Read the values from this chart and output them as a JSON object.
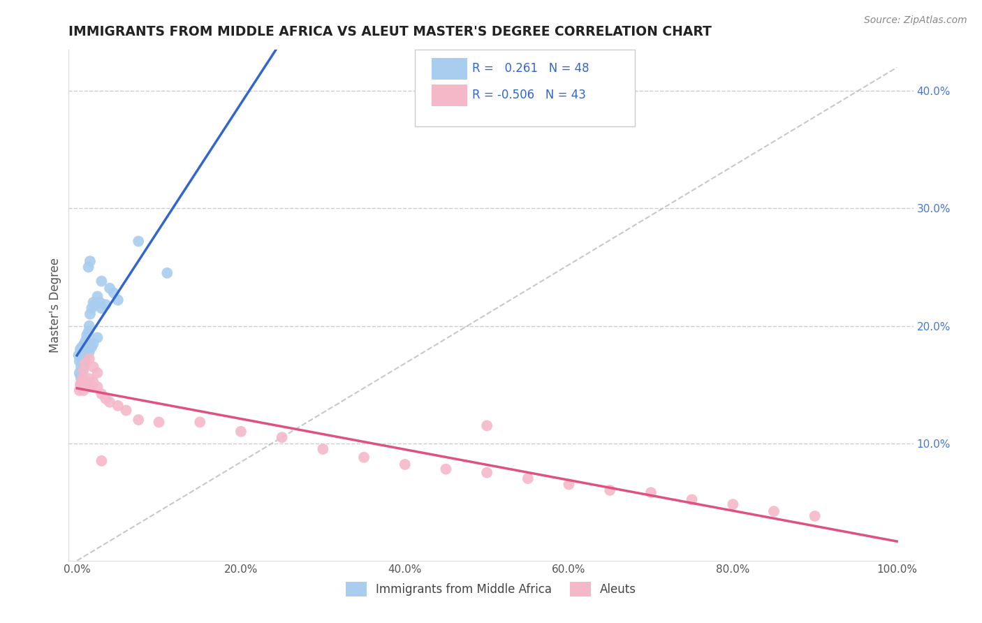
{
  "title": "IMMIGRANTS FROM MIDDLE AFRICA VS ALEUT MASTER'S DEGREE CORRELATION CHART",
  "source": "Source: ZipAtlas.com",
  "ylabel": "Master's Degree",
  "legend_label_blue": "Immigrants from Middle Africa",
  "legend_label_pink": "Aleuts",
  "r_blue": 0.261,
  "n_blue": 48,
  "r_pink": -0.506,
  "n_pink": 43,
  "color_blue": "#A8CDEE",
  "color_blue_line": "#3366CC",
  "color_pink": "#F5B8C8",
  "color_pink_line": "#E05080",
  "color_dashed": "#BBBBBB",
  "background": "#FFFFFF",
  "grid_color": "#CCCCCC",
  "blue_scatter_x": [
    0.002,
    0.003,
    0.004,
    0.005,
    0.005,
    0.006,
    0.006,
    0.007,
    0.007,
    0.008,
    0.008,
    0.009,
    0.01,
    0.01,
    0.011,
    0.012,
    0.013,
    0.014,
    0.015,
    0.016,
    0.018,
    0.02,
    0.022,
    0.025,
    0.028,
    0.03,
    0.035,
    0.04,
    0.045,
    0.05,
    0.003,
    0.004,
    0.005,
    0.006,
    0.007,
    0.008,
    0.009,
    0.01,
    0.012,
    0.015,
    0.018,
    0.02,
    0.025,
    0.03,
    0.075,
    0.11,
    0.014,
    0.016
  ],
  "blue_scatter_y": [
    0.175,
    0.17,
    0.18,
    0.165,
    0.178,
    0.172,
    0.182,
    0.168,
    0.175,
    0.173,
    0.18,
    0.185,
    0.178,
    0.172,
    0.188,
    0.192,
    0.185,
    0.195,
    0.2,
    0.21,
    0.215,
    0.22,
    0.218,
    0.225,
    0.22,
    0.215,
    0.218,
    0.232,
    0.228,
    0.222,
    0.16,
    0.158,
    0.155,
    0.162,
    0.168,
    0.165,
    0.17,
    0.175,
    0.18,
    0.178,
    0.182,
    0.185,
    0.19,
    0.238,
    0.272,
    0.245,
    0.25,
    0.255
  ],
  "pink_scatter_x": [
    0.003,
    0.004,
    0.005,
    0.006,
    0.007,
    0.008,
    0.009,
    0.01,
    0.012,
    0.015,
    0.018,
    0.02,
    0.025,
    0.03,
    0.035,
    0.04,
    0.05,
    0.06,
    0.075,
    0.1,
    0.15,
    0.2,
    0.25,
    0.3,
    0.35,
    0.4,
    0.45,
    0.5,
    0.55,
    0.6,
    0.65,
    0.7,
    0.75,
    0.8,
    0.85,
    0.9,
    0.01,
    0.015,
    0.02,
    0.025,
    0.008,
    0.03,
    0.5
  ],
  "pink_scatter_y": [
    0.145,
    0.15,
    0.148,
    0.152,
    0.155,
    0.145,
    0.15,
    0.148,
    0.152,
    0.155,
    0.148,
    0.152,
    0.148,
    0.142,
    0.138,
    0.135,
    0.132,
    0.128,
    0.12,
    0.118,
    0.118,
    0.11,
    0.105,
    0.095,
    0.088,
    0.082,
    0.078,
    0.075,
    0.07,
    0.065,
    0.06,
    0.058,
    0.052,
    0.048,
    0.042,
    0.038,
    0.168,
    0.172,
    0.165,
    0.16,
    0.162,
    0.085,
    0.115
  ]
}
